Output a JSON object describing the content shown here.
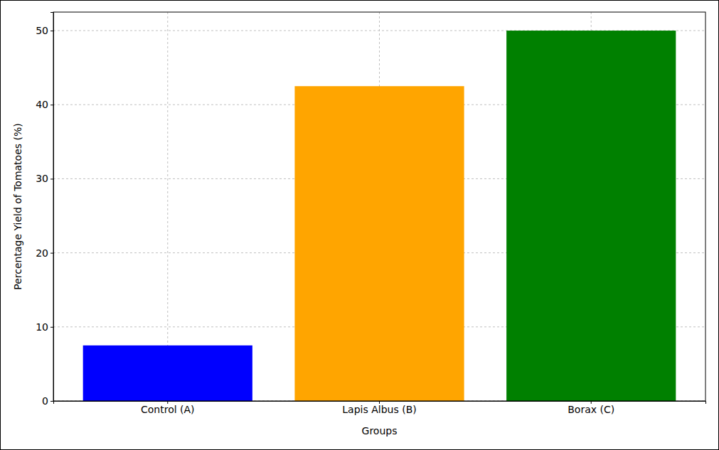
{
  "chart_data": {
    "type": "bar",
    "x_label": "Groups",
    "y_label": "Percentage Yield of Tomatoes (%)",
    "categories": [
      "Control (A)",
      "Lapis Albus (B)",
      "Borax (C)"
    ],
    "values": [
      7.5,
      42.5,
      50
    ],
    "colors": [
      "#0000ff",
      "#ffa500",
      "#008000"
    ],
    "ylim": [
      0,
      52.5
    ],
    "yticks": [
      0,
      10,
      20,
      30,
      40,
      50
    ],
    "grid": true
  }
}
